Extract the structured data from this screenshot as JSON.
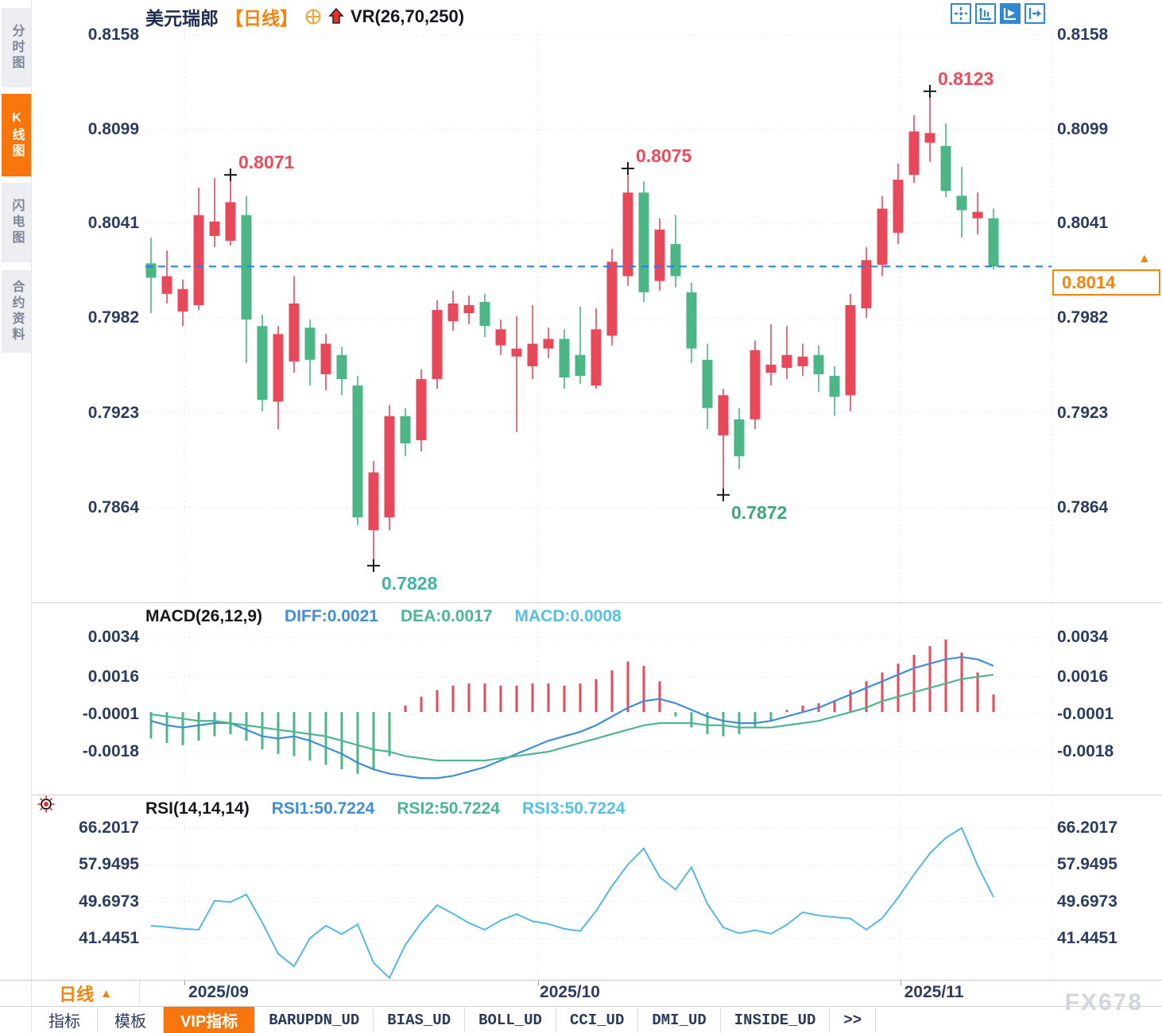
{
  "header": {
    "symbol": "美元瑞郎",
    "period_tag": "【日线】",
    "indicator_label": "VR(26,70,250)",
    "window_icons": [
      "pan-crosshair-icon",
      "axis-scale-icon",
      "chart-play-icon",
      "exit-right-icon"
    ]
  },
  "sidebar": {
    "items": [
      {
        "label": "分时图",
        "active": false
      },
      {
        "label": "K线图",
        "active": true
      },
      {
        "label": "闪电图",
        "active": false
      },
      {
        "label": "合约资料",
        "active": false
      }
    ]
  },
  "colors": {
    "up": "#e8495a",
    "down": "#4db687",
    "diff_line": "#3f8edc",
    "dea_line": "#4cb690",
    "rsi_line": "#55b7e5",
    "current_price_line": "#1d7df2",
    "accent_orange": "#f7770e",
    "axis_text": "#2c3c60",
    "red_label": "#ef4a5b",
    "green_label": "#3ba878",
    "teal_label": "#3eb5a5"
  },
  "current_price": {
    "value": "0.8014",
    "arrow": "▲"
  },
  "chart_data": [
    {
      "type": "candlestick",
      "title": "美元瑞郎 日线 candlestick (USD/CHF daily)",
      "y_ticks": [
        "0.8158",
        "0.8099",
        "0.8041",
        "0.7982",
        "0.7923",
        "0.7864"
      ],
      "x_tick_labels": [
        "2025/09",
        "2025/10",
        "2025/11"
      ],
      "last_price": 0.8014,
      "candles": [
        [
          0.8016,
          0.8032,
          0.7985,
          0.8007
        ],
        [
          0.7997,
          0.8024,
          0.7991,
          0.8008
        ],
        [
          0.7986,
          0.8006,
          0.7977,
          0.8
        ],
        [
          0.799,
          0.8063,
          0.7987,
          0.8046
        ],
        [
          0.8033,
          0.8069,
          0.8026,
          0.8042
        ],
        [
          0.803,
          0.8071,
          0.8027,
          0.8054
        ],
        [
          0.8046,
          0.8058,
          0.7954,
          0.7981
        ],
        [
          0.7977,
          0.7984,
          0.7924,
          0.7931
        ],
        [
          0.793,
          0.7977,
          0.7913,
          0.7972
        ],
        [
          0.7955,
          0.8008,
          0.7948,
          0.7991
        ],
        [
          0.7976,
          0.7981,
          0.794,
          0.7956
        ],
        [
          0.7947,
          0.7972,
          0.7937,
          0.7966
        ],
        [
          0.7959,
          0.7964,
          0.7934,
          0.7944
        ],
        [
          0.794,
          0.7946,
          0.7853,
          0.7858
        ],
        [
          0.785,
          0.7893,
          0.7828,
          0.7886
        ],
        [
          0.7858,
          0.7928,
          0.785,
          0.7921
        ],
        [
          0.7921,
          0.7926,
          0.7896,
          0.7904
        ],
        [
          0.7906,
          0.795,
          0.7899,
          0.7944
        ],
        [
          0.7944,
          0.7993,
          0.7938,
          0.7987
        ],
        [
          0.798,
          0.7999,
          0.7974,
          0.7991
        ],
        [
          0.7985,
          0.7996,
          0.7978,
          0.799
        ],
        [
          0.7992,
          0.7997,
          0.797,
          0.7977
        ],
        [
          0.7965,
          0.7981,
          0.7959,
          0.7975
        ],
        [
          0.7958,
          0.7983,
          0.7911,
          0.7963
        ],
        [
          0.7952,
          0.799,
          0.7944,
          0.7966
        ],
        [
          0.7963,
          0.7976,
          0.7957,
          0.7969
        ],
        [
          0.7969,
          0.7975,
          0.7938,
          0.7945
        ],
        [
          0.7959,
          0.7989,
          0.7941,
          0.7946
        ],
        [
          0.794,
          0.7988,
          0.7938,
          0.7975
        ],
        [
          0.7971,
          0.8025,
          0.7965,
          0.8017
        ],
        [
          0.8008,
          0.8075,
          0.8002,
          0.806
        ],
        [
          0.806,
          0.8067,
          0.7992,
          0.7998
        ],
        [
          0.8005,
          0.8044,
          0.7999,
          0.8037
        ],
        [
          0.8028,
          0.8046,
          0.8001,
          0.8008
        ],
        [
          0.7998,
          0.8004,
          0.7954,
          0.7963
        ],
        [
          0.7956,
          0.7966,
          0.7913,
          0.7926
        ],
        [
          0.7909,
          0.7938,
          0.7872,
          0.7934
        ],
        [
          0.7919,
          0.7926,
          0.7888,
          0.7896
        ],
        [
          0.7919,
          0.7968,
          0.7913,
          0.7962
        ],
        [
          0.7948,
          0.7978,
          0.794,
          0.7953
        ],
        [
          0.7951,
          0.7977,
          0.7944,
          0.7959
        ],
        [
          0.7952,
          0.7966,
          0.7946,
          0.7958
        ],
        [
          0.7959,
          0.7965,
          0.7936,
          0.7947
        ],
        [
          0.7946,
          0.7952,
          0.7921,
          0.7933
        ],
        [
          0.7934,
          0.7997,
          0.7924,
          0.799
        ],
        [
          0.7988,
          0.8026,
          0.7982,
          0.8018
        ],
        [
          0.8015,
          0.8058,
          0.8008,
          0.805
        ],
        [
          0.8035,
          0.8078,
          0.8028,
          0.8068
        ],
        [
          0.8071,
          0.8108,
          0.8066,
          0.8098
        ],
        [
          0.8091,
          0.8123,
          0.8079,
          0.8097
        ],
        [
          0.8089,
          0.8103,
          0.8057,
          0.8061
        ],
        [
          0.8058,
          0.8076,
          0.8032,
          0.8049
        ],
        [
          0.8044,
          0.806,
          0.8034,
          0.8048
        ],
        [
          0.8044,
          0.805,
          0.8012,
          0.8014
        ]
      ],
      "marked_points": [
        {
          "label": "0.8071",
          "candle": 6,
          "at": "high",
          "color": "#ef4a5b"
        },
        {
          "label": "0.7828",
          "candle": 15,
          "at": "low",
          "color": "#3eb5a5"
        },
        {
          "label": "0.8075",
          "candle": 31,
          "at": "high",
          "color": "#ef4a5b"
        },
        {
          "label": "0.7872",
          "candle": 37,
          "at": "low",
          "color": "#3ba878"
        },
        {
          "label": "0.8123",
          "candle": 50,
          "at": "high",
          "color": "#ef4a5b"
        }
      ]
    },
    {
      "type": "bar+line",
      "title": "MACD(26,12,9)",
      "legend": {
        "diff": "DIFF:0.0021",
        "dea": "DEA:0.0017",
        "macd": "MACD:0.0008"
      },
      "y_ticks": [
        "0.0034",
        "0.0016",
        "-0.0001",
        "-0.0018"
      ],
      "bars": [
        -0.0012,
        -0.0014,
        -0.0015,
        -0.0013,
        -0.0011,
        -0.001,
        -0.0013,
        -0.0017,
        -0.0019,
        -0.002,
        -0.0022,
        -0.0024,
        -0.0026,
        -0.0028,
        -0.0026,
        -0.002,
        0.0003,
        0.0007,
        0.001,
        0.0012,
        0.0013,
        0.0013,
        0.0012,
        0.0012,
        0.0013,
        0.0013,
        0.0012,
        0.0013,
        0.0015,
        0.0019,
        0.0023,
        0.0021,
        0.0014,
        -0.0002,
        -0.0007,
        -0.001,
        -0.0011,
        -0.001,
        -0.0007,
        -0.0004,
        0.0001,
        0.0003,
        0.0004,
        0.0005,
        0.001,
        0.0014,
        0.0018,
        0.0022,
        0.0026,
        0.003,
        0.0033,
        0.0027,
        0.0018,
        0.0008
      ],
      "diff": [
        -0.0004,
        -0.0006,
        -0.0007,
        -0.0006,
        -0.0005,
        -0.0005,
        -0.0008,
        -0.0011,
        -0.0012,
        -0.0011,
        -0.0013,
        -0.0016,
        -0.0019,
        -0.0023,
        -0.0026,
        -0.0028,
        -0.0029,
        -0.003,
        -0.003,
        -0.0029,
        -0.0027,
        -0.0025,
        -0.0022,
        -0.0019,
        -0.0016,
        -0.0013,
        -0.0011,
        -0.0009,
        -0.0006,
        -0.0002,
        0.0002,
        0.0005,
        0.0006,
        0.0004,
        0.0001,
        -0.0002,
        -0.0004,
        -0.0005,
        -0.0005,
        -0.0004,
        -0.0002,
        0.0,
        0.0002,
        0.0005,
        0.0008,
        0.0011,
        0.0014,
        0.0017,
        0.002,
        0.0022,
        0.0024,
        0.0025,
        0.0024,
        0.0021
      ],
      "dea": [
        -0.0001,
        -0.0002,
        -0.0003,
        -0.0004,
        -0.0004,
        -0.0005,
        -0.0006,
        -0.0007,
        -0.0008,
        -0.0009,
        -0.001,
        -0.0011,
        -0.0013,
        -0.0015,
        -0.0017,
        -0.0018,
        -0.002,
        -0.0021,
        -0.0022,
        -0.0022,
        -0.0022,
        -0.0022,
        -0.0021,
        -0.002,
        -0.0019,
        -0.0018,
        -0.0016,
        -0.0014,
        -0.0012,
        -0.001,
        -0.0008,
        -0.0006,
        -0.0005,
        -0.0005,
        -0.0005,
        -0.0006,
        -0.0006,
        -0.0007,
        -0.0007,
        -0.0007,
        -0.0006,
        -0.0005,
        -0.0004,
        -0.0002,
        0.0,
        0.0002,
        0.0005,
        0.0007,
        0.0009,
        0.0011,
        0.0013,
        0.0015,
        0.0016,
        0.0017
      ]
    },
    {
      "type": "line",
      "title": "RSI(14,14,14)",
      "legend": {
        "rsi1": "RSI1:50.7224",
        "rsi2": "RSI2:50.7224",
        "rsi3": "RSI3:50.7224"
      },
      "y_ticks": [
        "66.2017",
        "57.9495",
        "49.6973",
        "41.4451"
      ],
      "rsi": [
        44.3,
        44.0,
        43.6,
        43.4,
        49.9,
        49.6,
        51.3,
        45.0,
        38.0,
        35.2,
        41.5,
        44.3,
        42.4,
        44.6,
        36.0,
        32.6,
        40.0,
        45.0,
        48.9,
        47.0,
        44.9,
        43.4,
        45.5,
        46.9,
        45.3,
        44.7,
        43.6,
        43.1,
        47.6,
        53.2,
        58.0,
        61.6,
        55.2,
        52.4,
        57.4,
        49.2,
        43.9,
        42.6,
        43.3,
        42.5,
        44.5,
        47.3,
        46.6,
        46.2,
        45.9,
        43.4,
        46.0,
        50.6,
        55.8,
        60.5,
        64.0,
        66.2,
        57.8,
        50.7
      ]
    }
  ],
  "xaxis": {
    "period_label": "日线",
    "period_arrow": "▲",
    "dates": [
      "2025/09",
      "2025/10",
      "2025/11"
    ]
  },
  "tabbar": {
    "tabs": [
      {
        "label": "指标",
        "active": false,
        "mono": false
      },
      {
        "label": "模板",
        "active": false,
        "mono": false
      },
      {
        "label": "VIP指标",
        "active": true,
        "mono": false
      },
      {
        "label": "BARUPDN_UD",
        "active": false,
        "mono": true
      },
      {
        "label": "BIAS_UD",
        "active": false,
        "mono": true
      },
      {
        "label": "BOLL_UD",
        "active": false,
        "mono": true
      },
      {
        "label": "CCI_UD",
        "active": false,
        "mono": true
      },
      {
        "label": "DMI_UD",
        "active": false,
        "mono": true
      },
      {
        "label": "INSIDE_UD",
        "active": false,
        "mono": true
      },
      {
        "label": ">>",
        "active": false,
        "mono": true
      }
    ]
  },
  "watermark": "FX678"
}
